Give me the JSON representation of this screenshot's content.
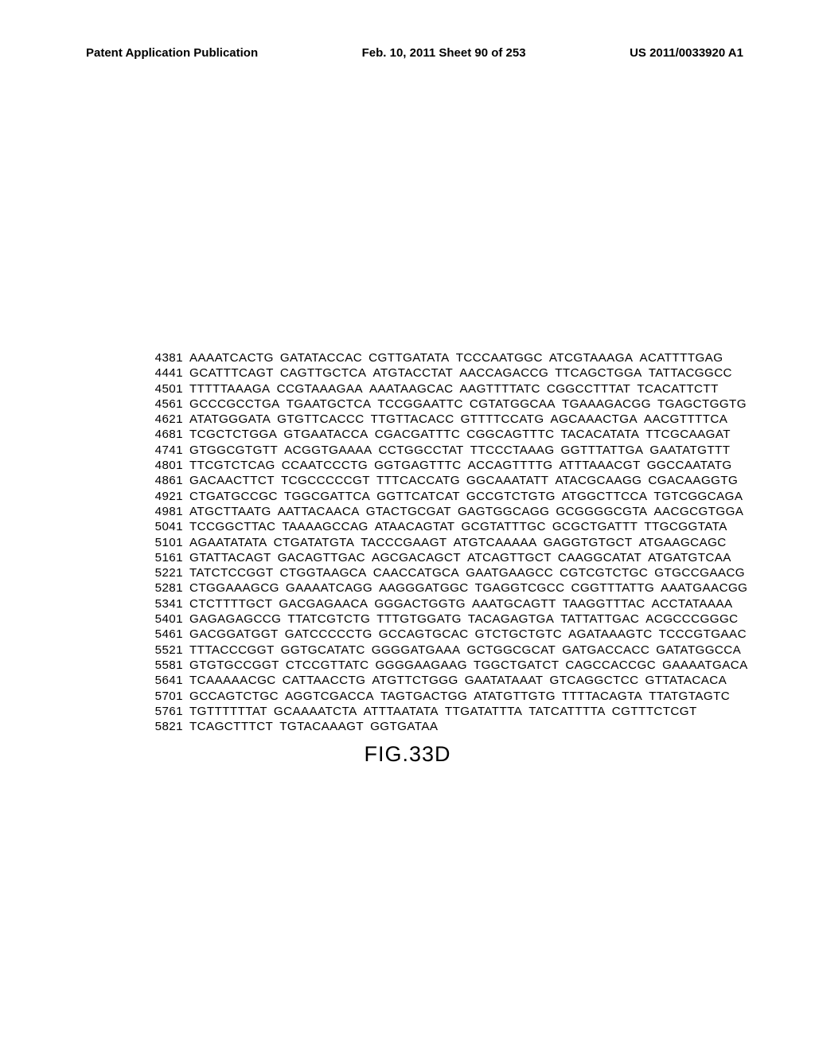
{
  "header": {
    "left": "Patent Application Publication",
    "center": "Feb. 10, 2011  Sheet 90 of 253",
    "right": "US 2011/0033920 A1"
  },
  "figure_label": "FIG.33D",
  "sequence": {
    "rows": [
      {
        "pos": "4381",
        "groups": [
          "AAAATCACTG",
          "GATATACCAC",
          "CGTTGATATA",
          "TCCCAATGGC",
          "ATCGTAAAGA",
          "ACATTTTGAG"
        ]
      },
      {
        "pos": "4441",
        "groups": [
          "GCATTTCAGT",
          "CAGTTGCTCA",
          "ATGTACCTAT",
          "AACCAGACCG",
          "TTCAGCTGGA",
          "TATTACGGCC"
        ]
      },
      {
        "pos": "4501",
        "groups": [
          "TTTTTAAAGA",
          "CCGTAAAGAA",
          "AAATAAGCAC",
          "AAGTTTTATC",
          "CGGCCTTTAT",
          "TCACATTCTT"
        ]
      },
      {
        "pos": "4561",
        "groups": [
          "GCCCGCCTGA",
          "TGAATGCTCA",
          "TCCGGAATTC",
          "CGTATGGCAA",
          "TGAAAGACGG",
          "TGAGCTGGTG"
        ]
      },
      {
        "pos": "4621",
        "groups": [
          "ATATGGGATA",
          "GTGTTCACCC",
          "TTGTTACACC",
          "GTTTTCCATG",
          "AGCAAACTGA",
          "AACGTTTTCA"
        ]
      },
      {
        "pos": "4681",
        "groups": [
          "TCGCTCTGGA",
          "GTGAATACCA",
          "CGACGATTTC",
          "CGGCAGTTTC",
          "TACACATATA",
          "TTCGCAAGAT"
        ]
      },
      {
        "pos": "4741",
        "groups": [
          "GTGGCGTGTT",
          "ACGGTGAAAA",
          "CCTGGCCTAT",
          "TTCCCTAAAG",
          "GGTTTATTGA",
          "GAATATGTTT"
        ]
      },
      {
        "pos": "4801",
        "groups": [
          "TTCGTCTCAG",
          "CCAATCCCTG",
          "GGTGAGTTTC",
          "ACCAGTTTTG",
          "ATTTAAACGT",
          "GGCCAATATG"
        ]
      },
      {
        "pos": "4861",
        "groups": [
          "GACAACTTCT",
          "TCGCCCCCGT",
          "TTTCACCATG",
          "GGCAAATATT",
          "ATACGCAAGG",
          "CGACAAGGTG"
        ]
      },
      {
        "pos": "4921",
        "groups": [
          "CTGATGCCGC",
          "TGGCGATTCA",
          "GGTTCATCAT",
          "GCCGTCTGTG",
          "ATGGCTTCCA",
          "TGTCGGCAGA"
        ]
      },
      {
        "pos": "4981",
        "groups": [
          "ATGCTTAATG",
          "AATTACAACA",
          "GTACTGCGAT",
          "GAGTGGCAGG",
          "GCGGGGCGTA",
          "AACGCGTGGA"
        ]
      },
      {
        "pos": "5041",
        "groups": [
          "TCCGGCTTAC",
          "TAAAAGCCAG",
          "ATAACAGTAT",
          "GCGTATTTGC",
          "GCGCTGATTT",
          "TTGCGGTATA"
        ]
      },
      {
        "pos": "5101",
        "groups": [
          "AGAATATATA",
          "CTGATATGTA",
          "TACCCGAAGT",
          "ATGTCAAAAA",
          "GAGGTGTGCT",
          "ATGAAGCAGC"
        ]
      },
      {
        "pos": "5161",
        "groups": [
          "GTATTACAGT",
          "GACAGTTGAC",
          "AGCGACAGCT",
          "ATCAGTTGCT",
          "CAAGGCATAT",
          "ATGATGTCAA"
        ]
      },
      {
        "pos": "5221",
        "groups": [
          "TATCTCCGGT",
          "CTGGTAAGCA",
          "CAACCATGCA",
          "GAATGAAGCC",
          "CGTCGTCTGC",
          "GTGCCGAACG"
        ]
      },
      {
        "pos": "5281",
        "groups": [
          "CTGGAAAGCG",
          "GAAAATCAGG",
          "AAGGGATGGC",
          "TGAGGTCGCC",
          "CGGTTTATTG",
          "AAATGAACGG"
        ]
      },
      {
        "pos": "5341",
        "groups": [
          "CTCTTTTGCT",
          "GACGAGAACA",
          "GGGACTGGTG",
          "AAATGCAGTT",
          "TAAGGTTTAC",
          "ACCTATAAAA"
        ]
      },
      {
        "pos": "5401",
        "groups": [
          "GAGAGAGCCG",
          "TTATCGTCTG",
          "TTTGTGGATG",
          "TACAGAGTGA",
          "TATTATTGAC",
          "ACGCCCGGGC"
        ]
      },
      {
        "pos": "5461",
        "groups": [
          "GACGGATGGT",
          "GATCCCCCTG",
          "GCCAGTGCAC",
          "GTCTGCTGTC",
          "AGATAAAGTC",
          "TCCCGTGAAC"
        ]
      },
      {
        "pos": "5521",
        "groups": [
          "TTTACCCGGT",
          "GGTGCATATC",
          "GGGGATGAAA",
          "GCTGGCGCAT",
          "GATGACCACC",
          "GATATGGCCA"
        ]
      },
      {
        "pos": "5581",
        "groups": [
          "GTGTGCCGGT",
          "CTCCGTTATC",
          "GGGGAAGAAG",
          "TGGCTGATCT",
          "CAGCCACCGC",
          "GAAAATGACA"
        ]
      },
      {
        "pos": "5641",
        "groups": [
          "TCAAAAACGC",
          "CATTAACCTG",
          "ATGTTCTGGG",
          "GAATATAAAT",
          "GTCAGGCTCC",
          "GTTATACACA"
        ]
      },
      {
        "pos": "5701",
        "groups": [
          "GCCAGTCTGC",
          "AGGTCGACCA",
          "TAGTGACTGG",
          "ATATGTTGTG",
          "TTTTACAGTA",
          "TTATGTAGTC"
        ]
      },
      {
        "pos": "5761",
        "groups": [
          "TGTTTTTTAT",
          "GCAAAATCTA",
          "ATTTAATATA",
          "TTGATATTTA",
          "TATCATTTTA",
          "CGTTTCTCGT"
        ]
      },
      {
        "pos": "5821",
        "groups": [
          "TCAGCTTTCT",
          "TGTACAAAGT",
          "GGTGATAA"
        ]
      }
    ]
  },
  "style": {
    "background_color": "#ffffff",
    "text_color": "#000000",
    "header_fontsize": 15,
    "sequence_fontsize": 15.2,
    "figure_fontsize": 27
  }
}
